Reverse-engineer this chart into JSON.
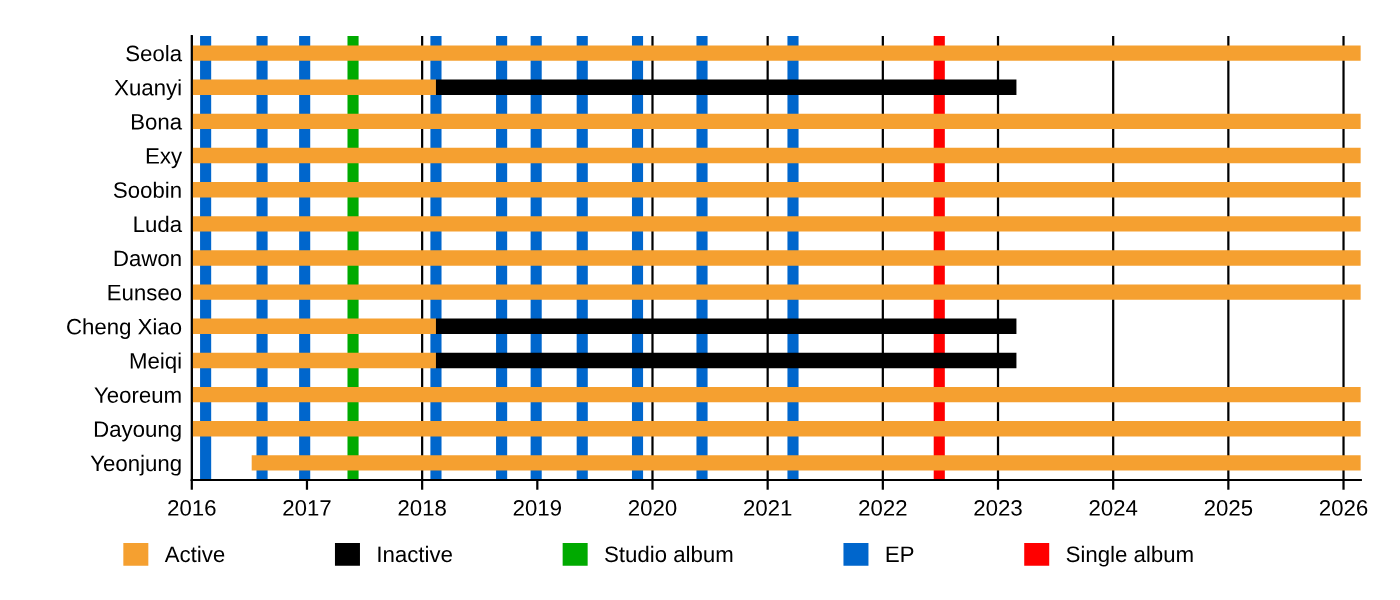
{
  "chart_data": {
    "type": "bar",
    "orientation": "horizontal",
    "categories": [
      "Seola",
      "Xuanyi",
      "Bona",
      "Exy",
      "Soobin",
      "Luda",
      "Dawon",
      "Eunseo",
      "Cheng Xiao",
      "Meiqi",
      "Yeoreum",
      "Dayoung",
      "Yeonjung"
    ],
    "series": [
      {
        "name": "Active",
        "color": "#f5a030",
        "base": [
          2016,
          2016,
          2016,
          2016,
          2016,
          2016,
          2016,
          2016,
          2016,
          2016,
          2016,
          2016,
          2016.52
        ],
        "values": [
          10.15,
          2.12,
          10.15,
          10.15,
          10.15,
          10.15,
          10.15,
          10.15,
          2.12,
          2.12,
          10.15,
          10.15,
          9.63
        ]
      },
      {
        "name": "Inactive",
        "color": "#000000",
        "base": [
          null,
          2018.12,
          null,
          null,
          null,
          null,
          null,
          null,
          2018.12,
          2018.12,
          null,
          null,
          null
        ],
        "values": [
          null,
          5.04,
          null,
          null,
          null,
          null,
          null,
          null,
          5.04,
          5.04,
          null,
          null,
          null
        ]
      }
    ],
    "ref_lines": [
      {
        "axis": "x",
        "value": 2016.12,
        "color": "#0066cc"
      },
      {
        "axis": "x",
        "value": 2016.61,
        "color": "#0066cc"
      },
      {
        "axis": "x",
        "value": 2016.98,
        "color": "#0066cc"
      },
      {
        "axis": "x",
        "value": 2017.4,
        "label": "Studio album",
        "color": "#00aa00"
      },
      {
        "axis": "x",
        "value": 2018.12,
        "label": "EP",
        "color": "#0066cc"
      },
      {
        "axis": "x",
        "value": 2018.69,
        "color": "#0066cc"
      },
      {
        "axis": "x",
        "value": 2018.99,
        "color": "#0066cc"
      },
      {
        "axis": "x",
        "value": 2019.39,
        "color": "#0066cc"
      },
      {
        "axis": "x",
        "value": 2019.87,
        "color": "#0066cc"
      },
      {
        "axis": "x",
        "value": 2020.43,
        "color": "#0066cc"
      },
      {
        "axis": "x",
        "value": 2021.22,
        "color": "#0066cc"
      },
      {
        "axis": "x",
        "value": 2022.49,
        "label": "Single album",
        "color": "#ff0000"
      }
    ],
    "xlim": [
      2016,
      2026.15
    ],
    "xticks": [
      2016,
      2017,
      2018,
      2019,
      2020,
      2021,
      2022,
      2023,
      2024,
      2025,
      2026
    ],
    "grid": "x",
    "legend": "bottom"
  }
}
